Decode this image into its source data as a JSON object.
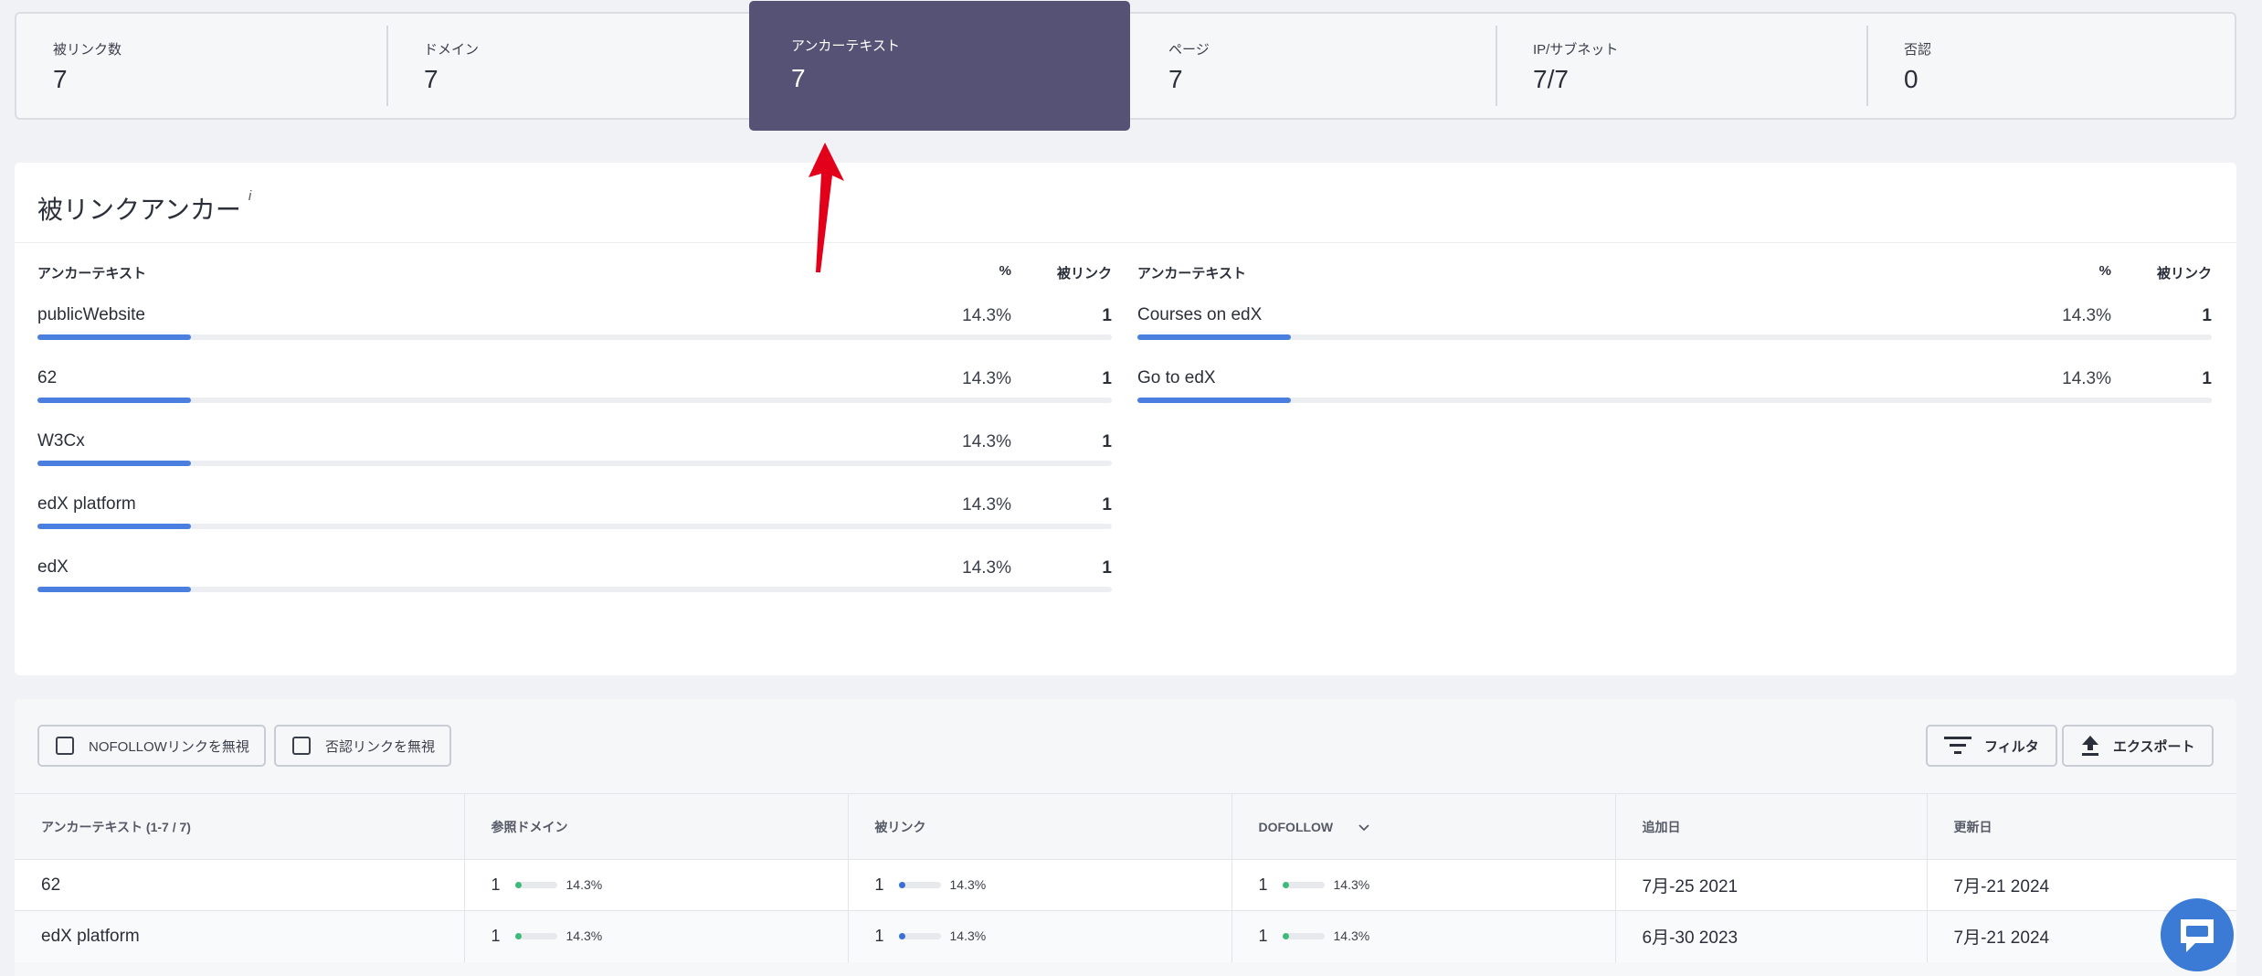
{
  "stats": [
    {
      "label": "被リンク数",
      "value": "7"
    },
    {
      "label": "ドメイン",
      "value": "7"
    },
    {
      "label": "アンカーテキスト",
      "value": "7"
    },
    {
      "label": "ページ",
      "value": "7"
    },
    {
      "label": "IP/サブネット",
      "value": "7/7"
    },
    {
      "label": "否認",
      "value": "0"
    }
  ],
  "colors": {
    "active_stat": "#565275",
    "bar_fill": "#4a7fe0",
    "arrow": "#e3001b",
    "dot_green": "#3dbb7a",
    "dot_blue": "#3a6fd8",
    "chat": "#3b7bd5"
  },
  "anchors": {
    "title": "被リンクアンカー",
    "info_mark": "i",
    "headers": {
      "anchor": "アンカーテキスト",
      "pct": "%",
      "backlinks": "被リンク"
    },
    "left": [
      {
        "text": "publicWebsite",
        "pct": "14.3%",
        "count": "1",
        "share": 0.143
      },
      {
        "text": "62",
        "pct": "14.3%",
        "count": "1",
        "share": 0.143
      },
      {
        "text": "W3Cx",
        "pct": "14.3%",
        "count": "1",
        "share": 0.143
      },
      {
        "text": "edX platform",
        "pct": "14.3%",
        "count": "1",
        "share": 0.143
      },
      {
        "text": "edX",
        "pct": "14.3%",
        "count": "1",
        "share": 0.143
      }
    ],
    "right": [
      {
        "text": "Courses on edX",
        "pct": "14.3%",
        "count": "1",
        "share": 0.143
      },
      {
        "text": "Go to edX",
        "pct": "14.3%",
        "count": "1",
        "share": 0.143
      }
    ]
  },
  "toolbar": {
    "ignore_nofollow": "NOFOLLOWリンクを無視",
    "ignore_disavow": "否認リンクを無視",
    "filter": "フィルタ",
    "export": "エクスポート"
  },
  "table": {
    "columns": [
      "アンカーテキスト (1-7 / 7)",
      "参照ドメイン",
      "被リンク",
      "DOFOLLOW",
      "追加日",
      "更新日"
    ],
    "rows": [
      {
        "anchor": "62",
        "ref_domains": "1",
        "ref_pct": "14.3%",
        "backlinks": "1",
        "bl_pct": "14.3%",
        "dofollow": "1",
        "df_pct": "14.3%",
        "added": "7月-25 2021",
        "updated": "7月-21 2024"
      },
      {
        "anchor": "edX platform",
        "ref_domains": "1",
        "ref_pct": "14.3%",
        "backlinks": "1",
        "bl_pct": "14.3%",
        "dofollow": "1",
        "df_pct": "14.3%",
        "added": "6月-30 2023",
        "updated": "7月-21 2024"
      }
    ]
  }
}
